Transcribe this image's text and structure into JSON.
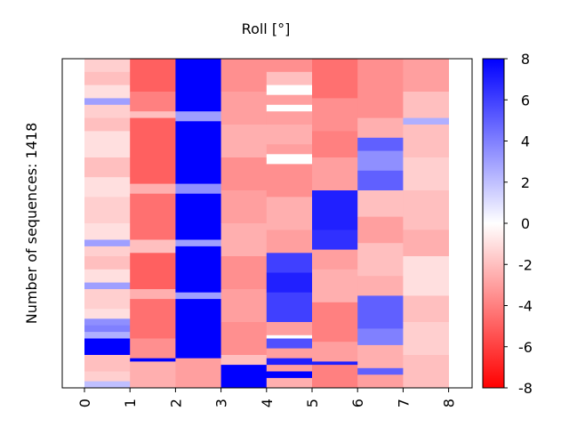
{
  "chart_data": {
    "type": "heatmap",
    "title": "Roll [°]",
    "ylabel": "Number of sequences: 1418",
    "xlabel": "",
    "x_tick_labels": [
      "0",
      "1",
      "2",
      "3",
      "4",
      "5",
      "6",
      "7",
      "8"
    ],
    "colorbar": {
      "min": -8,
      "max": 8,
      "tick_labels": [
        "8",
        "6",
        "4",
        "2",
        "0",
        "-2",
        "-4",
        "-6",
        "-8"
      ],
      "tick_values": [
        8,
        6,
        4,
        2,
        0,
        -2,
        -4,
        -6,
        -8
      ],
      "colormap": "bwr_reversed",
      "colors": {
        "positive": "#0000ff",
        "zero": "#ffffff",
        "negative": "#ff0000"
      }
    },
    "grid": false,
    "columns": [
      {
        "position": 0,
        "bands": [
          [
            0.0,
            0.04,
            -1.5
          ],
          [
            0.04,
            0.08,
            -2.0
          ],
          [
            0.08,
            0.12,
            -1.0
          ],
          [
            0.12,
            0.14,
            3.0
          ],
          [
            0.14,
            0.18,
            -1.5
          ],
          [
            0.18,
            0.22,
            -2.0
          ],
          [
            0.22,
            0.3,
            -1.0
          ],
          [
            0.3,
            0.36,
            -2.0
          ],
          [
            0.36,
            0.42,
            -1.0
          ],
          [
            0.42,
            0.5,
            -1.5
          ],
          [
            0.5,
            0.55,
            -1.0
          ],
          [
            0.55,
            0.57,
            3.0
          ],
          [
            0.57,
            0.6,
            -1.5
          ],
          [
            0.6,
            0.64,
            -2.0
          ],
          [
            0.64,
            0.68,
            -1.0
          ],
          [
            0.68,
            0.7,
            3.0
          ],
          [
            0.7,
            0.76,
            -1.5
          ],
          [
            0.76,
            0.79,
            -1.0
          ],
          [
            0.79,
            0.81,
            3.5
          ],
          [
            0.81,
            0.83,
            4.0
          ],
          [
            0.83,
            0.85,
            2.5
          ],
          [
            0.85,
            0.9,
            8.0
          ],
          [
            0.9,
            0.95,
            -2.0
          ],
          [
            0.95,
            0.98,
            -1.5
          ],
          [
            0.98,
            1.0,
            2.0
          ]
        ]
      },
      {
        "position": 1,
        "bands": [
          [
            0.0,
            0.1,
            -5.0
          ],
          [
            0.1,
            0.16,
            -4.0
          ],
          [
            0.16,
            0.18,
            -2.0
          ],
          [
            0.18,
            0.38,
            -5.0
          ],
          [
            0.38,
            0.41,
            -2.5
          ],
          [
            0.41,
            0.55,
            -4.5
          ],
          [
            0.55,
            0.59,
            -2.0
          ],
          [
            0.59,
            0.7,
            -5.0
          ],
          [
            0.7,
            0.73,
            -2.5
          ],
          [
            0.73,
            0.85,
            -4.5
          ],
          [
            0.85,
            0.91,
            -3.5
          ],
          [
            0.91,
            0.92,
            8.0
          ],
          [
            0.92,
            1.0,
            -2.5
          ]
        ]
      },
      {
        "position": 2,
        "bands": [
          [
            0.0,
            0.16,
            8.0
          ],
          [
            0.16,
            0.19,
            3.0
          ],
          [
            0.19,
            0.38,
            8.0
          ],
          [
            0.38,
            0.41,
            3.5
          ],
          [
            0.41,
            0.55,
            8.0
          ],
          [
            0.55,
            0.57,
            3.0
          ],
          [
            0.57,
            0.71,
            8.0
          ],
          [
            0.71,
            0.73,
            3.0
          ],
          [
            0.73,
            0.91,
            8.0
          ],
          [
            0.91,
            1.0,
            -3.0
          ]
        ]
      },
      {
        "position": 3,
        "bands": [
          [
            0.0,
            0.1,
            -3.5
          ],
          [
            0.1,
            0.2,
            -3.0
          ],
          [
            0.2,
            0.3,
            -2.5
          ],
          [
            0.3,
            0.4,
            -3.5
          ],
          [
            0.4,
            0.5,
            -3.0
          ],
          [
            0.5,
            0.6,
            -2.5
          ],
          [
            0.6,
            0.7,
            -3.5
          ],
          [
            0.7,
            0.8,
            -3.0
          ],
          [
            0.8,
            0.9,
            -3.5
          ],
          [
            0.9,
            0.93,
            -2.0
          ],
          [
            0.93,
            1.0,
            8.0
          ]
        ]
      },
      {
        "position": 4,
        "bands": [
          [
            0.0,
            0.04,
            -3.5
          ],
          [
            0.04,
            0.08,
            -2.0
          ],
          [
            0.08,
            0.11,
            0.0
          ],
          [
            0.11,
            0.14,
            -3.0
          ],
          [
            0.14,
            0.16,
            0.0
          ],
          [
            0.16,
            0.2,
            -3.0
          ],
          [
            0.2,
            0.26,
            -2.5
          ],
          [
            0.26,
            0.29,
            -3.0
          ],
          [
            0.29,
            0.32,
            0.0
          ],
          [
            0.32,
            0.42,
            -3.5
          ],
          [
            0.42,
            0.52,
            -2.5
          ],
          [
            0.52,
            0.59,
            -3.0
          ],
          [
            0.59,
            0.65,
            6.0
          ],
          [
            0.65,
            0.71,
            7.0
          ],
          [
            0.71,
            0.8,
            6.0
          ],
          [
            0.8,
            0.84,
            -3.0
          ],
          [
            0.84,
            0.85,
            0.0
          ],
          [
            0.85,
            0.88,
            5.5
          ],
          [
            0.88,
            0.91,
            -3.0
          ],
          [
            0.91,
            0.93,
            7.0
          ],
          [
            0.93,
            0.95,
            -3.0
          ],
          [
            0.95,
            0.97,
            8.0
          ],
          [
            0.97,
            1.0,
            -2.5
          ]
        ]
      },
      {
        "position": 5,
        "bands": [
          [
            0.0,
            0.12,
            -4.5
          ],
          [
            0.12,
            0.22,
            -3.5
          ],
          [
            0.22,
            0.3,
            -4.0
          ],
          [
            0.3,
            0.4,
            -3.0
          ],
          [
            0.4,
            0.52,
            7.0
          ],
          [
            0.52,
            0.58,
            6.5
          ],
          [
            0.58,
            0.64,
            -3.0
          ],
          [
            0.64,
            0.74,
            -2.5
          ],
          [
            0.74,
            0.86,
            -4.0
          ],
          [
            0.86,
            0.92,
            -3.0
          ],
          [
            0.92,
            0.93,
            7.0
          ],
          [
            0.93,
            1.0,
            -4.0
          ]
        ]
      },
      {
        "position": 6,
        "bands": [
          [
            0.0,
            0.18,
            -3.5
          ],
          [
            0.18,
            0.24,
            -2.5
          ],
          [
            0.24,
            0.28,
            5.0
          ],
          [
            0.28,
            0.34,
            3.5
          ],
          [
            0.34,
            0.4,
            5.0
          ],
          [
            0.4,
            0.48,
            -2.0
          ],
          [
            0.48,
            0.56,
            -3.0
          ],
          [
            0.56,
            0.66,
            -2.0
          ],
          [
            0.66,
            0.72,
            -2.5
          ],
          [
            0.72,
            0.82,
            5.0
          ],
          [
            0.82,
            0.87,
            4.0
          ],
          [
            0.87,
            0.94,
            -2.5
          ],
          [
            0.94,
            0.96,
            5.0
          ],
          [
            0.96,
            1.0,
            -3.0
          ]
        ]
      },
      {
        "position": 7,
        "bands": [
          [
            0.0,
            0.1,
            -3.0
          ],
          [
            0.1,
            0.18,
            -2.0
          ],
          [
            0.18,
            0.2,
            2.5
          ],
          [
            0.2,
            0.3,
            -2.0
          ],
          [
            0.3,
            0.4,
            -1.5
          ],
          [
            0.4,
            0.52,
            -2.0
          ],
          [
            0.52,
            0.6,
            -2.5
          ],
          [
            0.6,
            0.72,
            -1.0
          ],
          [
            0.72,
            0.8,
            -2.0
          ],
          [
            0.8,
            0.9,
            -1.5
          ],
          [
            0.9,
            1.0,
            -2.0
          ]
        ]
      }
    ]
  }
}
